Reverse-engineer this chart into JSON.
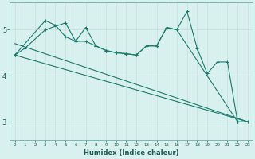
{
  "xlabel": "Humidex (Indice chaleur)",
  "background_color": "#d8f0ee",
  "grid_color_major": "#c8e8e4",
  "grid_color_minor": "#e0f4f2",
  "line_color": "#1a7a6e",
  "xlim": [
    -0.5,
    23.5
  ],
  "ylim": [
    2.6,
    5.6
  ],
  "yticks": [
    3,
    4,
    5
  ],
  "xticks": [
    0,
    1,
    2,
    3,
    4,
    5,
    6,
    7,
    8,
    9,
    10,
    11,
    12,
    13,
    14,
    15,
    16,
    17,
    18,
    19,
    20,
    21,
    22,
    23
  ],
  "series1_x": [
    0,
    1,
    3,
    5,
    6,
    7,
    8,
    9,
    10,
    11,
    12,
    13,
    14,
    15,
    16,
    22,
    23
  ],
  "series1_y": [
    4.45,
    4.6,
    5.0,
    5.15,
    4.75,
    4.75,
    4.65,
    4.55,
    4.5,
    4.48,
    4.45,
    4.65,
    4.65,
    5.05,
    5.0,
    3.0,
    3.0
  ],
  "series2_x": [
    0,
    3,
    4,
    5,
    6,
    7,
    8,
    9,
    10,
    11,
    12,
    13,
    14,
    15,
    16,
    17,
    18,
    19,
    20,
    21,
    22
  ],
  "series2_y": [
    4.45,
    5.2,
    5.1,
    4.85,
    4.75,
    5.05,
    4.65,
    4.55,
    4.5,
    4.48,
    4.45,
    4.65,
    4.65,
    5.05,
    5.0,
    5.4,
    4.6,
    4.05,
    4.3,
    4.3,
    3.0
  ],
  "series3_x": [
    0,
    23
  ],
  "series3_y": [
    4.45,
    3.0
  ],
  "series4_x": [
    0,
    23
  ],
  "series4_y": [
    4.7,
    3.0
  ]
}
